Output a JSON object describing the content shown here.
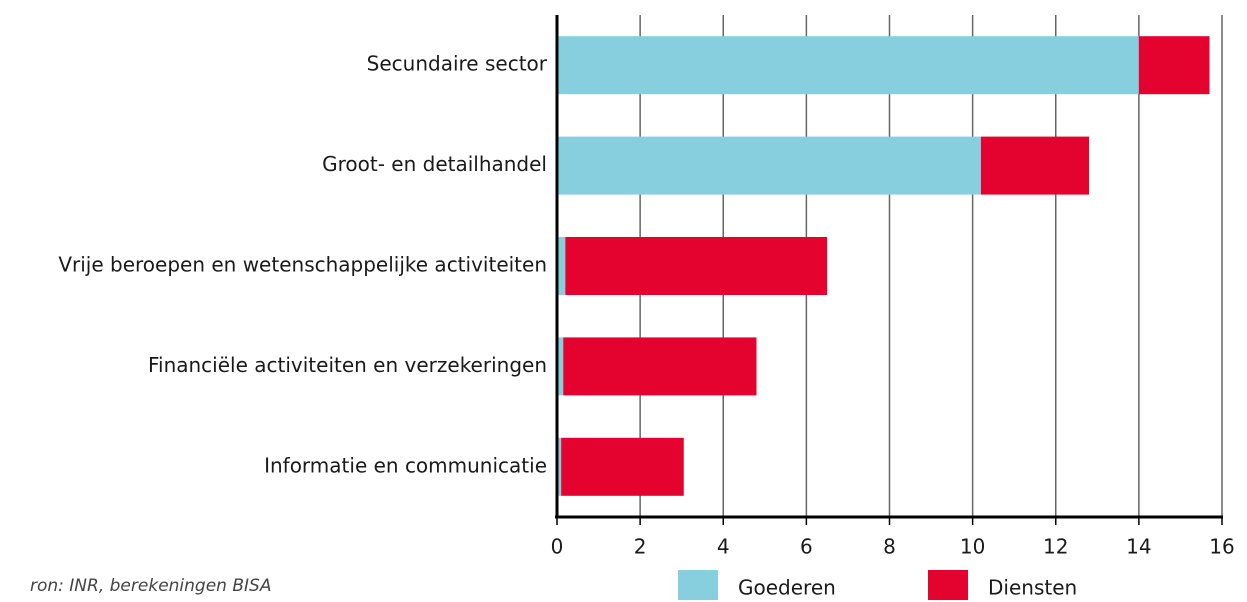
{
  "chart_data": {
    "type": "bar",
    "orientation": "horizontal",
    "stacked": true,
    "categories": [
      "Secundaire sector",
      "Groot- en detailhandel",
      "Vrije beroepen en wetenschappelijke activiteiten",
      "Financiële activiteiten en verzekeringen",
      "Informatie en communicatie"
    ],
    "series": [
      {
        "name": "Goederen",
        "color": "#87cfdf",
        "values": [
          14.0,
          10.2,
          0.2,
          0.15,
          0.1
        ]
      },
      {
        "name": "Diensten",
        "color": "#e4032e",
        "values": [
          1.7,
          2.6,
          6.3,
          4.65,
          2.95
        ]
      }
    ],
    "xlim": [
      0,
      16
    ],
    "xticks": [
      0,
      2,
      4,
      6,
      8,
      10,
      12,
      14,
      16
    ],
    "grid": true,
    "source": "ron: INR, berekeningen BISA"
  }
}
